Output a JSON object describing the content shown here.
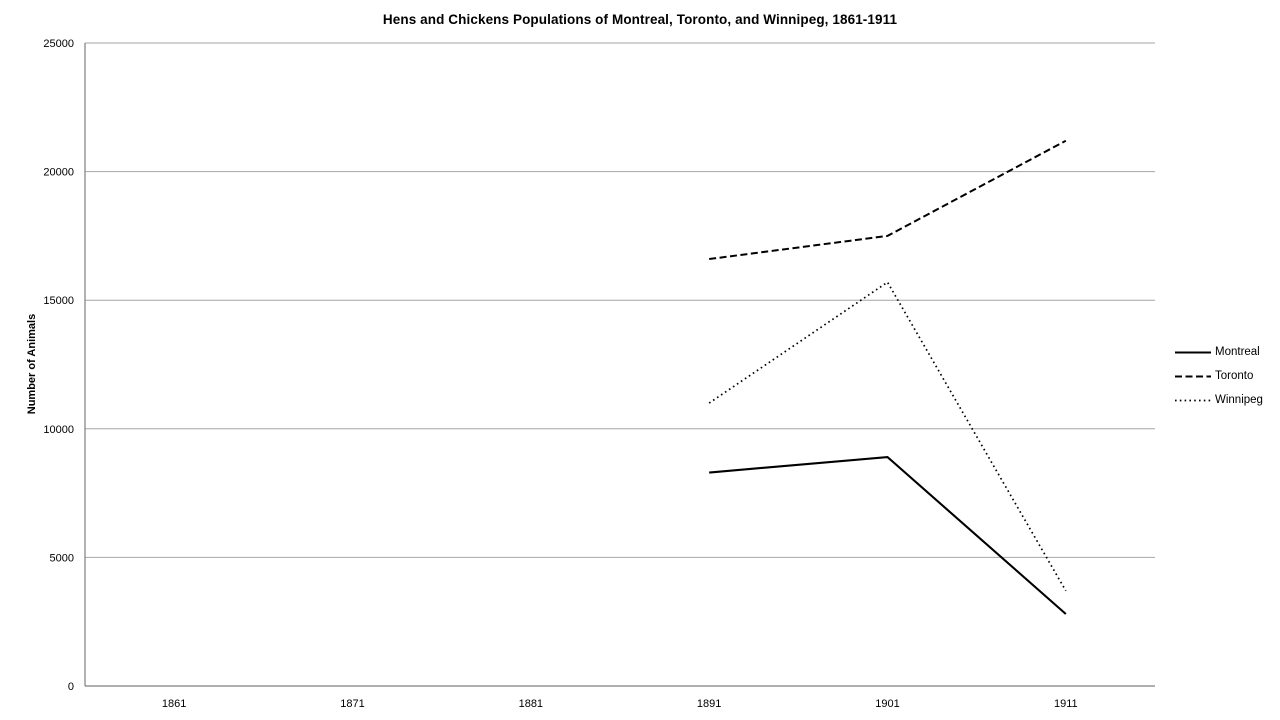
{
  "chart_data": {
    "type": "line",
    "title": "Hens and Chickens Populations of Montreal, Toronto, and Winnipeg, 1861-1911",
    "xlabel": "",
    "ylabel": "Number of Animals",
    "categories": [
      "1861",
      "1871",
      "1881",
      "1891",
      "1901",
      "1911"
    ],
    "series": [
      {
        "name": "Montreal",
        "line_style": "solid",
        "values": [
          null,
          null,
          null,
          8300,
          8900,
          2800
        ]
      },
      {
        "name": "Toronto",
        "line_style": "dashed",
        "values": [
          null,
          null,
          null,
          16600,
          17500,
          21200
        ]
      },
      {
        "name": "Winnipeg",
        "line_style": "dotted",
        "values": [
          null,
          null,
          null,
          11000,
          15700,
          3700
        ]
      }
    ],
    "ylim": [
      0,
      25000
    ],
    "ytick_step": 5000,
    "yticks": [
      "0",
      "5000",
      "10000",
      "15000",
      "20000",
      "25000"
    ],
    "grid": true,
    "legend_position": "right",
    "colors": {
      "series_line": "#000000",
      "gridline": "#a6a6a6",
      "axis_line": "#7f7f7f",
      "text": "#000000",
      "background": "#ffffff"
    }
  }
}
